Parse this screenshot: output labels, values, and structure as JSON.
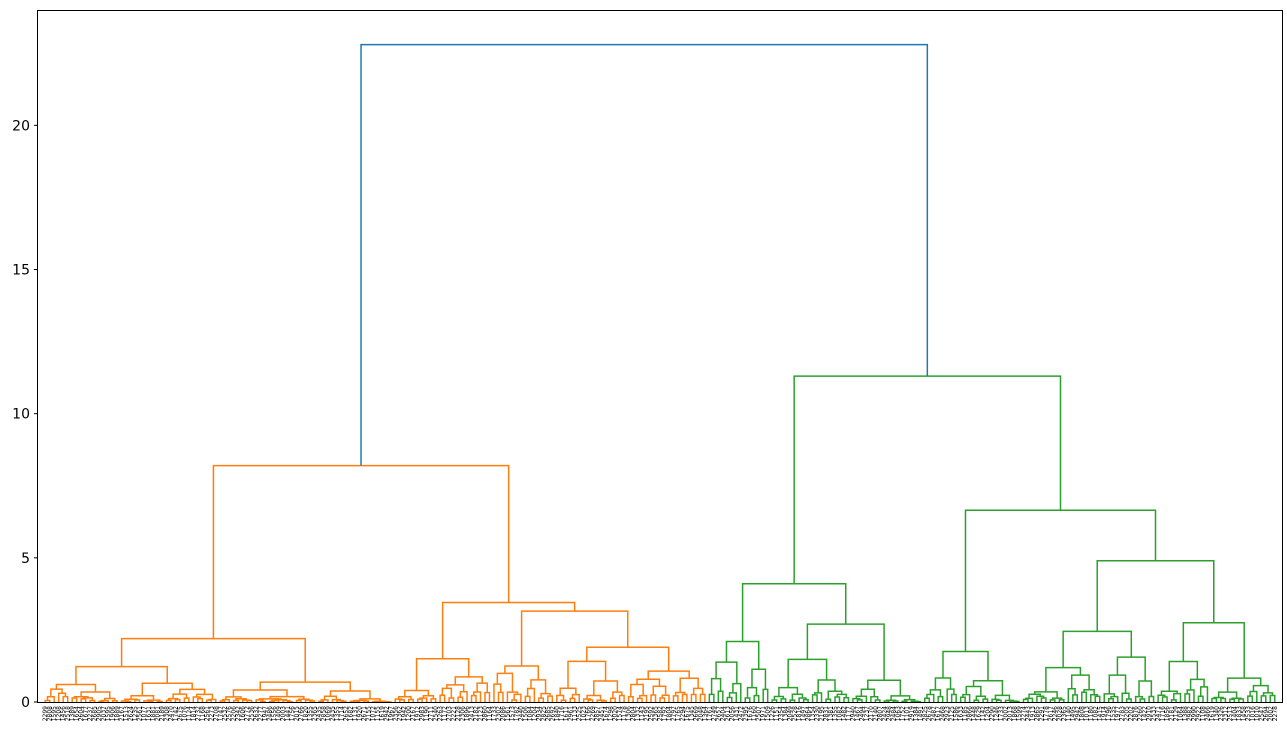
{
  "chart_data": {
    "type": "dendrogram",
    "title": "",
    "xlabel": "",
    "ylabel": "",
    "ylim": [
      0,
      24
    ],
    "y_ticks": [
      0,
      5,
      10,
      15,
      20
    ],
    "grid": false,
    "colors": {
      "root": "#1f77b4",
      "cluster_a": "#ff7f0e",
      "cluster_b": "#2ca02c",
      "axis": "#000000"
    },
    "leaf_count": 275,
    "leaf_counts": {
      "cluster_a": 148,
      "cluster_b": 127
    },
    "top_merges": [
      {
        "name": "root",
        "height": 22.8,
        "color": "root",
        "children": [
          "cluster_a",
          "cluster_b"
        ]
      },
      {
        "name": "cluster_a",
        "height": 8.2,
        "color": "cluster_a",
        "children": [
          "a1",
          "a2"
        ]
      },
      {
        "name": "a1",
        "height": 2.2,
        "color": "cluster_a"
      },
      {
        "name": "a2",
        "height": 3.45,
        "color": "cluster_a",
        "children": [
          "a21",
          "a22"
        ]
      },
      {
        "name": "a21",
        "height": 1.5,
        "color": "cluster_a"
      },
      {
        "name": "a22",
        "height": 3.15,
        "color": "cluster_a",
        "children": [
          "a221",
          "a222"
        ]
      },
      {
        "name": "a221",
        "height": 1.25,
        "color": "cluster_a"
      },
      {
        "name": "a222",
        "height": 1.9,
        "color": "cluster_a"
      },
      {
        "name": "cluster_b",
        "height": 11.3,
        "color": "cluster_b",
        "children": [
          "b1",
          "b2"
        ]
      },
      {
        "name": "b1",
        "height": 4.1,
        "color": "cluster_b",
        "children": [
          "b11",
          "b12"
        ]
      },
      {
        "name": "b11",
        "height": 2.1,
        "color": "cluster_b"
      },
      {
        "name": "b12",
        "height": 2.7,
        "color": "cluster_b"
      },
      {
        "name": "b2",
        "height": 6.65,
        "color": "cluster_b",
        "children": [
          "b21",
          "b22"
        ]
      },
      {
        "name": "b21",
        "height": 1.75,
        "color": "cluster_b"
      },
      {
        "name": "b22",
        "height": 4.9,
        "color": "cluster_b",
        "children": [
          "b221",
          "b222"
        ]
      },
      {
        "name": "b221",
        "height": 2.45,
        "color": "cluster_b"
      },
      {
        "name": "b222",
        "height": 2.75,
        "color": "cluster_b"
      }
    ]
  }
}
